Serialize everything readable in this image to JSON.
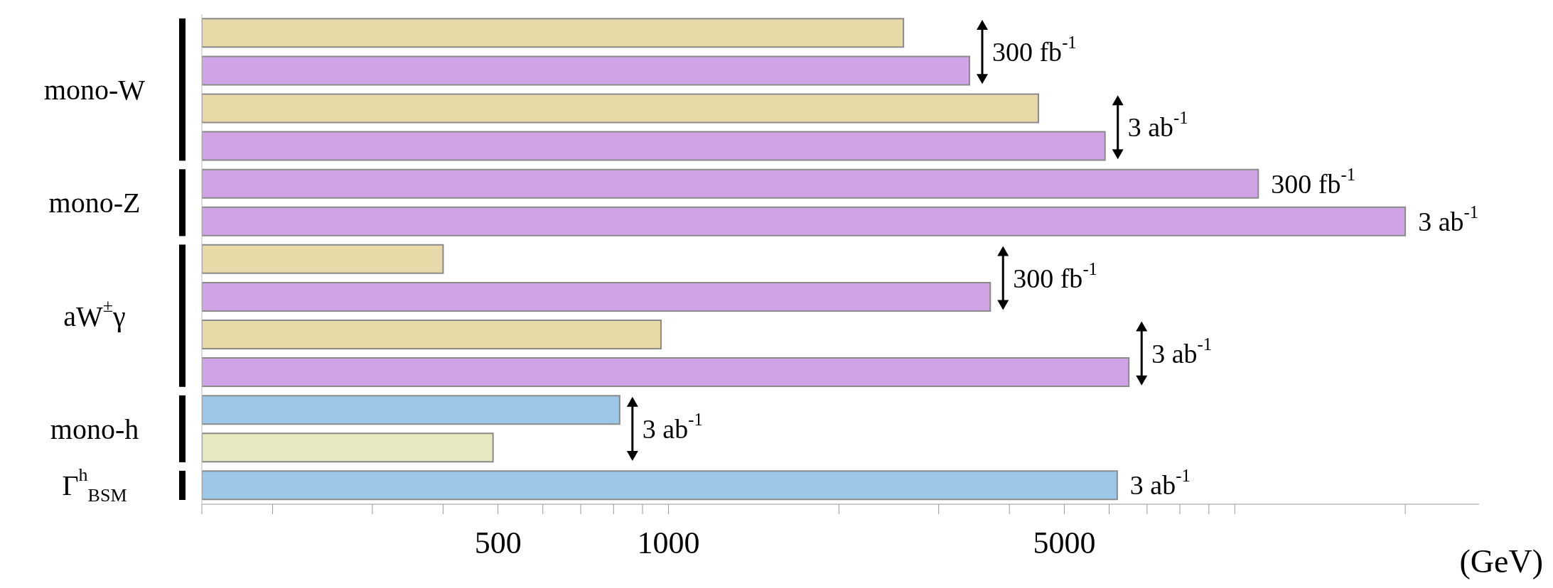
{
  "chart_data": {
    "type": "bar",
    "orientation": "horizontal",
    "log": "x",
    "xlabel": "(GeV)",
    "categories": [
      null,
      null,
      null,
      null,
      null,
      null,
      null,
      null,
      null,
      null,
      null,
      null,
      null
    ],
    "values": [
      2600,
      3400,
      4500,
      5900,
      11000,
      20000,
      400,
      3700,
      970,
      6500,
      820,
      490,
      6200
    ],
    "colors": [
      "#e8d9a8",
      "#cfa3e6",
      "#e8d9a8",
      "#cfa3e6",
      "#cfa3e6",
      "#cfa3e6",
      "#e8d9a8",
      "#cfa3e6",
      "#e8d9a8",
      "#cfa3e6",
      "#9cc7e6",
      "#e6e8c0",
      "#9cc7e6"
    ],
    "xlim": [
      150,
      27000
    ],
    "xticks": [
      {
        "value": 150,
        "label": null
      },
      {
        "value": 200,
        "label": null
      },
      {
        "value": 300,
        "label": null
      },
      {
        "value": 400,
        "label": null
      },
      500,
      {
        "value": 600,
        "label": null
      },
      {
        "value": 700,
        "label": null
      },
      {
        "value": 800,
        "label": null
      },
      {
        "value": 900,
        "label": null
      },
      1000,
      {
        "value": 2000,
        "label": null
      },
      {
        "value": 3000,
        "label": null
      },
      {
        "value": 4000,
        "label": null
      },
      5000,
      {
        "value": 6000,
        "label": null
      },
      {
        "value": 7000,
        "label": null
      },
      {
        "value": 8000,
        "label": null
      },
      {
        "value": 9000,
        "label": null
      },
      {
        "value": 10000,
        "label": null
      },
      {
        "value": 20000,
        "label": null
      }
    ],
    "annotations": [
      "mono-W",
      "mono-Z",
      "aW$^{±}$γ",
      "mono-h",
      "Γ$^{h}$$_{BSM}$",
      "300 fb$^{-1}$",
      "3 ab$^{-1}$",
      "300 fb$^{-1}$",
      "3 ab$^{-1}$",
      "300 fb$^{-1}$",
      "3 ab$^{-1}$",
      "3 ab$^{-1}$",
      "3 ab$^{-1}$"
    ],
    "tick_labels": "x"
  }
}
